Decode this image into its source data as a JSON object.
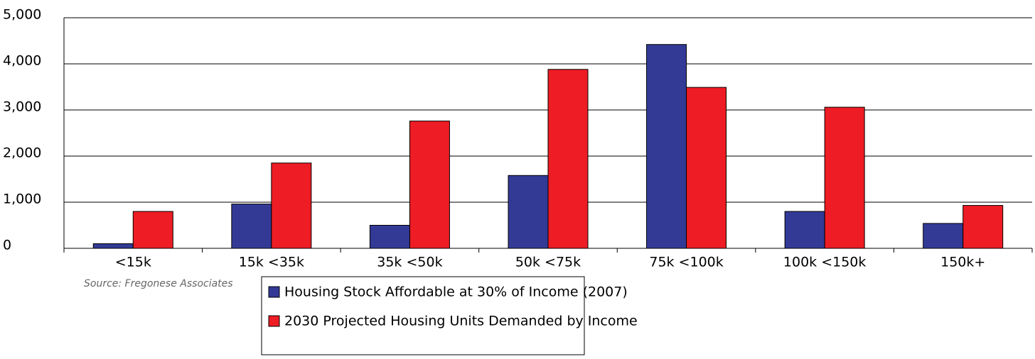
{
  "chart_data": {
    "type": "bar",
    "categories": [
      "<15k",
      "15k <35k",
      "35k <50k",
      "50k <75k",
      "75k <100k",
      "100k <150k",
      "150k+"
    ],
    "series": [
      {
        "name": "Housing Stock Affordable at 30% of Income (2007)",
        "color": "#333a96",
        "values": [
          100,
          960,
          500,
          1580,
          4420,
          800,
          540
        ]
      },
      {
        "name": "2030 Projected Housing Units Demanded by Income",
        "color": "#ee1c24",
        "values": [
          800,
          1850,
          2760,
          3880,
          3490,
          3060,
          930
        ]
      }
    ],
    "ylim": [
      0,
      5000
    ],
    "yticks": [
      0,
      {
        "value": 1000,
        "label": "1,000"
      },
      {
        "value": 2000,
        "label": "2,000"
      },
      {
        "value": 3000,
        "label": "3,000"
      },
      {
        "value": 4000,
        "label": "4,000"
      },
      {
        "value": 5000,
        "label": "5,000"
      }
    ],
    "grid": true,
    "source": "Source: Fregonese Associates",
    "legend": "bottom"
  }
}
